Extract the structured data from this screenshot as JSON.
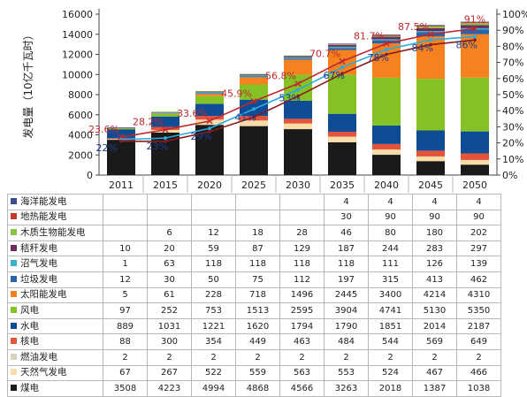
{
  "chart_data": {
    "type": "bar",
    "stacked": true,
    "categories": [
      "2011",
      "2015",
      "2020",
      "2025",
      "2030",
      "2035",
      "2040",
      "2045",
      "2050"
    ],
    "ylabel": "发电量（10亿千瓦时）",
    "ylim": [
      0,
      16000
    ],
    "y_ticks": [
      "0",
      "2000",
      "4000",
      "6000",
      "8000",
      "10000",
      "12000",
      "14000",
      "16000"
    ],
    "y2lim": [
      0,
      100
    ],
    "y2_ticks": [
      "0%",
      "10%",
      "20%",
      "30%",
      "40%",
      "50%",
      "60%",
      "70%",
      "80%",
      "90%",
      "100%"
    ],
    "grid": false,
    "series": [
      {
        "name": "海洋能发电",
        "color": "#3a4d8f",
        "values": [
          null,
          null,
          null,
          null,
          null,
          4,
          4,
          4,
          4
        ],
        "labels": [
          "",
          "",
          "",
          "",
          "",
          "4",
          "4",
          "4",
          "4"
        ]
      },
      {
        "name": "地热能发电",
        "color": "#c0392b",
        "values": [
          null,
          null,
          null,
          null,
          null,
          30,
          90,
          90,
          90
        ],
        "labels": [
          "",
          "",
          "",
          "",
          "",
          "30",
          "90",
          "90",
          "90"
        ]
      },
      {
        "name": "木质生物能发电",
        "color": "#8bc34a",
        "values": [
          null,
          6,
          12,
          18,
          28,
          46,
          80,
          180,
          202
        ],
        "labels": [
          "",
          "6",
          "12",
          "18",
          "28",
          "46",
          "80",
          "180",
          "202"
        ]
      },
      {
        "name": "秸秆发电",
        "color": "#6b2c5f",
        "values": [
          10,
          20,
          59,
          87,
          129,
          187,
          244,
          283,
          297
        ],
        "labels": [
          "10",
          "20",
          "59",
          "87",
          "129",
          "187",
          "244",
          "283",
          "297"
        ]
      },
      {
        "name": "沼气发电",
        "color": "#39b3c8",
        "values": [
          1,
          63,
          118,
          118,
          118,
          118,
          111,
          126,
          139
        ],
        "labels": [
          "1",
          "63",
          "118",
          "118",
          "118",
          "118",
          "111",
          "126",
          "139"
        ]
      },
      {
        "name": "垃圾发电",
        "color": "#2e63a8",
        "values": [
          12,
          30,
          50,
          75,
          112,
          197,
          315,
          413,
          462
        ],
        "labels": [
          "12",
          "30",
          "50",
          "75",
          "112",
          "197",
          "315",
          "413",
          "462"
        ]
      },
      {
        "name": "太阳能发电",
        "color": "#f5821f",
        "values": [
          5,
          61,
          228,
          718,
          1496,
          2445,
          3400,
          4214,
          4310
        ],
        "labels": [
          "5",
          "61",
          "228",
          "718",
          "1496",
          "2445",
          "3400",
          "4214",
          "4310"
        ]
      },
      {
        "name": "风电",
        "color": "#84c225",
        "values": [
          97,
          252,
          753,
          1513,
          2595,
          3904,
          4741,
          5130,
          5350
        ],
        "labels": [
          "97",
          "252",
          "753",
          "1513",
          "2595",
          "3904",
          "4741",
          "5130",
          "5350"
        ]
      },
      {
        "name": "水电",
        "color": "#0e4c96",
        "values": [
          889,
          1031,
          1221,
          1620,
          1794,
          1790,
          1851,
          2014,
          2187
        ],
        "labels": [
          "889",
          "1031",
          "1221",
          "1620",
          "1794",
          "1790",
          "1851",
          "2014",
          "2187"
        ]
      },
      {
        "name": "核电",
        "color": "#e5533a",
        "values": [
          88,
          300,
          354,
          449,
          463,
          484,
          544,
          569,
          649
        ],
        "labels": [
          "88",
          "300",
          "354",
          "449",
          "463",
          "484",
          "544",
          "569",
          "649"
        ]
      },
      {
        "name": "燃油发电",
        "color": "#d8d2b8",
        "values": [
          2,
          2,
          2,
          2,
          2,
          2,
          2,
          2,
          2
        ],
        "labels": [
          "2",
          "2",
          "2",
          "2",
          "2",
          "2",
          "2",
          "2",
          "2"
        ]
      },
      {
        "name": "天然气发电",
        "color": "#f9dca8",
        "values": [
          67,
          267,
          522,
          559,
          563,
          553,
          524,
          467,
          466
        ],
        "labels": [
          "67",
          "267",
          "522",
          "559",
          "563",
          "553",
          "524",
          "467",
          "466"
        ]
      },
      {
        "name": "煤电",
        "color": "#1a1a1a",
        "values": [
          3508,
          4223,
          4994,
          4868,
          4566,
          3263,
          2018,
          1387,
          1038
        ],
        "labels": [
          "3508",
          "4223",
          "4994",
          "4868",
          "4566",
          "3263",
          "2018",
          "1387",
          "1038"
        ]
      }
    ],
    "lines": [
      {
        "color": "#c0272d",
        "axis": "right",
        "values": [
          23.6,
          28.2,
          33.6,
          45.9,
          56.8,
          70.7,
          81.7,
          87.5,
          91
        ],
        "labels": [
          "23.6%",
          "28.2%",
          "33.6%",
          "45.9%",
          "56.8%",
          "70.7%",
          "81.7%",
          "87.5%",
          "91%"
        ]
      },
      {
        "color": "#29abe2",
        "axis": "right",
        "values": [
          22,
          23,
          29,
          41,
          53,
          67,
          78,
          84,
          86
        ],
        "labels": [
          "22%",
          "23%",
          "29%",
          "41%",
          "53%",
          "67%",
          "78%",
          "84%",
          "86%"
        ]
      },
      {
        "color": "#8b1a1a",
        "axis": "right",
        "values": [
          21,
          21,
          27,
          36,
          49,
          63,
          75,
          81,
          84
        ]
      }
    ]
  }
}
